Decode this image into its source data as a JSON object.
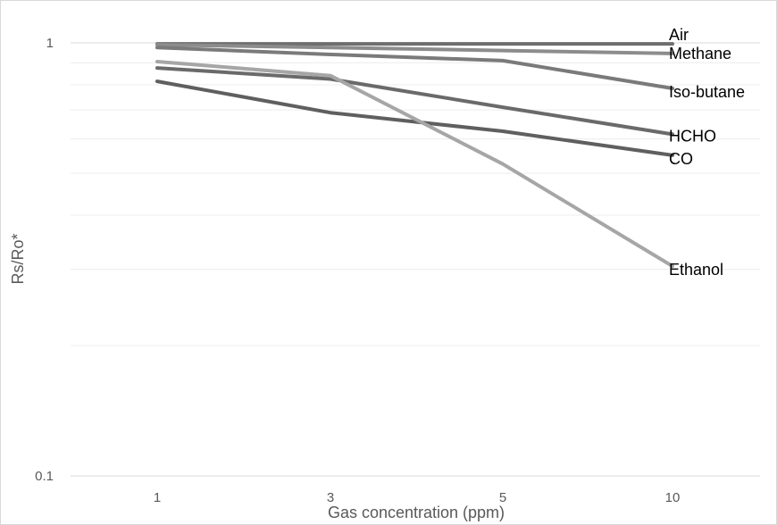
{
  "chart_data": {
    "type": "line",
    "title": "",
    "xlabel": "Gas concentration (ppm)",
    "ylabel": "Rs/Ro*",
    "y_scale": "log",
    "ylim": [
      0.1,
      1
    ],
    "y_ticks": [
      "1",
      "0.1"
    ],
    "x_axis_type": "category",
    "categories": [
      "1",
      "3",
      "5",
      "10"
    ],
    "grid": true,
    "legend": "labels at line ends",
    "series": [
      {
        "name": "Air",
        "values": [
          0.995,
          0.995,
          0.995,
          0.995
        ],
        "color": "#6e6e6e"
      },
      {
        "name": "Methane",
        "values": [
          0.99,
          0.975,
          0.96,
          0.945
        ],
        "color": "#8c8c8c"
      },
      {
        "name": "Iso-butane",
        "values": [
          0.975,
          0.94,
          0.91,
          0.785
        ],
        "color": "#7a7a7a"
      },
      {
        "name": "HCHO",
        "values": [
          0.875,
          0.825,
          0.71,
          0.615
        ],
        "color": "#6a6a6a"
      },
      {
        "name": "CO",
        "values": [
          0.815,
          0.69,
          0.625,
          0.55
        ],
        "color": "#5f5f5f"
      },
      {
        "name": "Ethanol",
        "values": [
          0.905,
          0.84,
          0.525,
          0.305
        ],
        "color": "#a6a6a6"
      }
    ]
  }
}
